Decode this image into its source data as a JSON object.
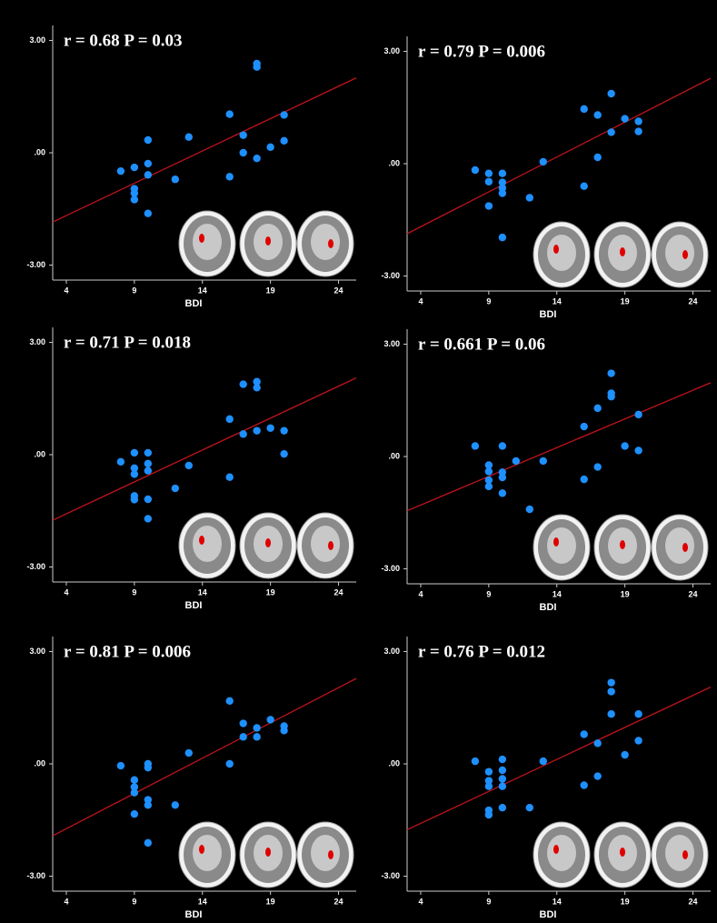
{
  "chart_data": [
    {
      "type": "scatter",
      "annotation": "r = 0.68 P = 0.03",
      "xlabel": "BDI",
      "color": "#1e90ff",
      "x": [
        8,
        9,
        9,
        9,
        9,
        10,
        10,
        10,
        10,
        12,
        13,
        16,
        16,
        17,
        17,
        18,
        18,
        18,
        19,
        20,
        20
      ],
      "values": [
        -0.49,
        -0.39,
        -0.96,
        -1.08,
        -1.25,
        0.34,
        -0.29,
        -0.59,
        -1.62,
        -0.71,
        0.42,
        1.03,
        -0.64,
        0.47,
        0.0,
        -0.15,
        2.29,
        2.38,
        0.15,
        0.32,
        1.01
      ],
      "trend_line": {
        "x": [
          3,
          25.3
        ],
        "y": [
          -1.85,
          2.0
        ],
        "color": "#c0141c"
      },
      "xlim": [
        3,
        25.3
      ],
      "ylim": [
        -3.4,
        3.4
      ],
      "xticks": [
        4,
        9,
        14,
        19,
        24
      ],
      "yticks": [
        {
          "value": 3,
          "label": "3.00"
        },
        {
          "value": 0,
          "label": ".00"
        },
        {
          "value": -3,
          "label": "-3.00"
        }
      ]
    },
    {
      "type": "scatter",
      "annotation": "r = 0.79 P = 0.006",
      "xlabel": "BDI",
      "color": "#1e90ff",
      "x": [
        8,
        9,
        9,
        9,
        10,
        10,
        10,
        10,
        10,
        12,
        13,
        16,
        16,
        17,
        17,
        18,
        18,
        19,
        20,
        20
      ],
      "values": [
        -0.17,
        -0.26,
        -0.48,
        -1.13,
        -0.26,
        -0.5,
        -0.65,
        -0.79,
        -1.97,
        -0.91,
        0.05,
        1.46,
        -0.6,
        1.3,
        0.17,
        1.87,
        0.84,
        1.2,
        1.13,
        0.86
      ],
      "trend_line": {
        "x": [
          3,
          25.3
        ],
        "y": [
          -1.87,
          2.28
        ],
        "color": "#c0141c"
      },
      "xlim": [
        3,
        25.3
      ],
      "ylim": [
        -3.4,
        3.4
      ],
      "xticks": [
        4,
        9,
        14,
        19,
        24
      ],
      "yticks": [
        {
          "value": 3,
          "label": "3.00"
        },
        {
          "value": 0,
          "label": ".00"
        },
        {
          "value": -3,
          "label": "-3.00"
        }
      ]
    },
    {
      "type": "scatter",
      "annotation": "r = 0.71 P = 0.018",
      "xlabel": "BDI",
      "color": "#1e90ff",
      "x": [
        8,
        9,
        9,
        9,
        9,
        9,
        10,
        10,
        10,
        10,
        10,
        12,
        13,
        16,
        16,
        17,
        17,
        18,
        18,
        18,
        19,
        20,
        20
      ],
      "values": [
        -0.19,
        0.05,
        -0.36,
        -0.52,
        -1.1,
        -1.2,
        0.05,
        -0.24,
        -0.43,
        -1.19,
        -1.71,
        -0.9,
        -0.29,
        0.95,
        -0.6,
        1.88,
        0.55,
        1.95,
        1.79,
        0.64,
        0.71,
        0.64,
        0.02
      ],
      "trend_line": {
        "x": [
          3,
          25.3
        ],
        "y": [
          -1.75,
          2.05
        ],
        "color": "#c0141c"
      },
      "xlim": [
        3,
        25.3
      ],
      "ylim": [
        -3.4,
        3.4
      ],
      "xticks": [
        4,
        9,
        14,
        19,
        24
      ],
      "yticks": [
        {
          "value": 3,
          "label": "3.00"
        },
        {
          "value": 0,
          "label": ".00"
        },
        {
          "value": -3,
          "label": "-3.00"
        }
      ]
    },
    {
      "type": "scatter",
      "annotation": "r = 0.661 P = 0.06",
      "xlabel": "BDI",
      "color": "#1e90ff",
      "x": [
        8,
        9,
        9,
        9,
        9,
        10,
        10,
        10,
        10,
        11,
        12,
        13,
        16,
        16,
        17,
        17,
        18,
        18,
        18,
        19,
        20,
        20
      ],
      "values": [
        0.28,
        -0.23,
        -0.4,
        -0.63,
        -0.8,
        0.28,
        -0.42,
        -0.56,
        -0.98,
        -0.12,
        -1.41,
        -0.12,
        0.8,
        -0.61,
        1.29,
        -0.28,
        2.22,
        1.69,
        1.6,
        0.28,
        1.12,
        0.16
      ],
      "trend_line": {
        "x": [
          3,
          25.3
        ],
        "y": [
          -1.45,
          1.97
        ],
        "color": "#c0141c"
      },
      "xlim": [
        3,
        25.3
      ],
      "ylim": [
        -3.4,
        3.4
      ],
      "xticks": [
        4,
        9,
        14,
        19,
        24
      ],
      "yticks": [
        {
          "value": 3,
          "label": "3.00"
        },
        {
          "value": 0,
          "label": ".00"
        },
        {
          "value": -3,
          "label": "-3.00"
        }
      ]
    },
    {
      "type": "scatter",
      "annotation": "r = 0.81 P = 0.006",
      "xlabel": "BDI",
      "color": "#1e90ff",
      "x": [
        8,
        9,
        9,
        9,
        9,
        10,
        10,
        10,
        10,
        10,
        12,
        13,
        16,
        16,
        17,
        17,
        18,
        18,
        19,
        20,
        20
      ],
      "values": [
        -0.05,
        -0.43,
        -0.62,
        -0.77,
        -1.34,
        0.0,
        -0.1,
        -0.96,
        -1.1,
        -2.11,
        -1.1,
        0.29,
        1.68,
        0.0,
        1.08,
        0.72,
        0.96,
        0.72,
        1.18,
        1.01,
        0.89
      ],
      "trend_line": {
        "x": [
          3,
          25.3
        ],
        "y": [
          -1.92,
          2.28
        ],
        "color": "#c0141c"
      },
      "xlim": [
        3,
        25.3
      ],
      "ylim": [
        -3.4,
        3.4
      ],
      "xticks": [
        4,
        9,
        14,
        19,
        24
      ],
      "yticks": [
        {
          "value": 3,
          "label": "3.00"
        },
        {
          "value": 0,
          "label": ".00"
        },
        {
          "value": -3,
          "label": "-3.00"
        }
      ]
    },
    {
      "type": "scatter",
      "annotation": "r = 0.76 P = 0.012",
      "xlabel": "BDI",
      "color": "#1e90ff",
      "x": [
        8,
        9,
        9,
        9,
        9,
        9,
        10,
        10,
        10,
        10,
        10,
        12,
        13,
        16,
        16,
        17,
        17,
        18,
        18,
        18,
        19,
        20,
        20
      ],
      "values": [
        0.07,
        -0.21,
        -0.45,
        -0.6,
        -1.24,
        -1.36,
        0.12,
        -0.17,
        -0.4,
        -0.6,
        -1.17,
        -1.17,
        0.07,
        0.79,
        -0.57,
        0.55,
        -0.33,
        2.17,
        1.93,
        1.33,
        0.24,
        1.33,
        0.62
      ],
      "trend_line": {
        "x": [
          3,
          25.3
        ],
        "y": [
          -1.76,
          2.05
        ],
        "color": "#c0141c"
      },
      "xlim": [
        3,
        25.3
      ],
      "ylim": [
        -3.4,
        3.4
      ],
      "xticks": [
        4,
        9,
        14,
        19,
        24
      ],
      "yticks": [
        {
          "value": 3,
          "label": "3.00"
        },
        {
          "value": 0,
          "label": ".00"
        },
        {
          "value": -3,
          "label": "-3.00"
        }
      ]
    }
  ]
}
